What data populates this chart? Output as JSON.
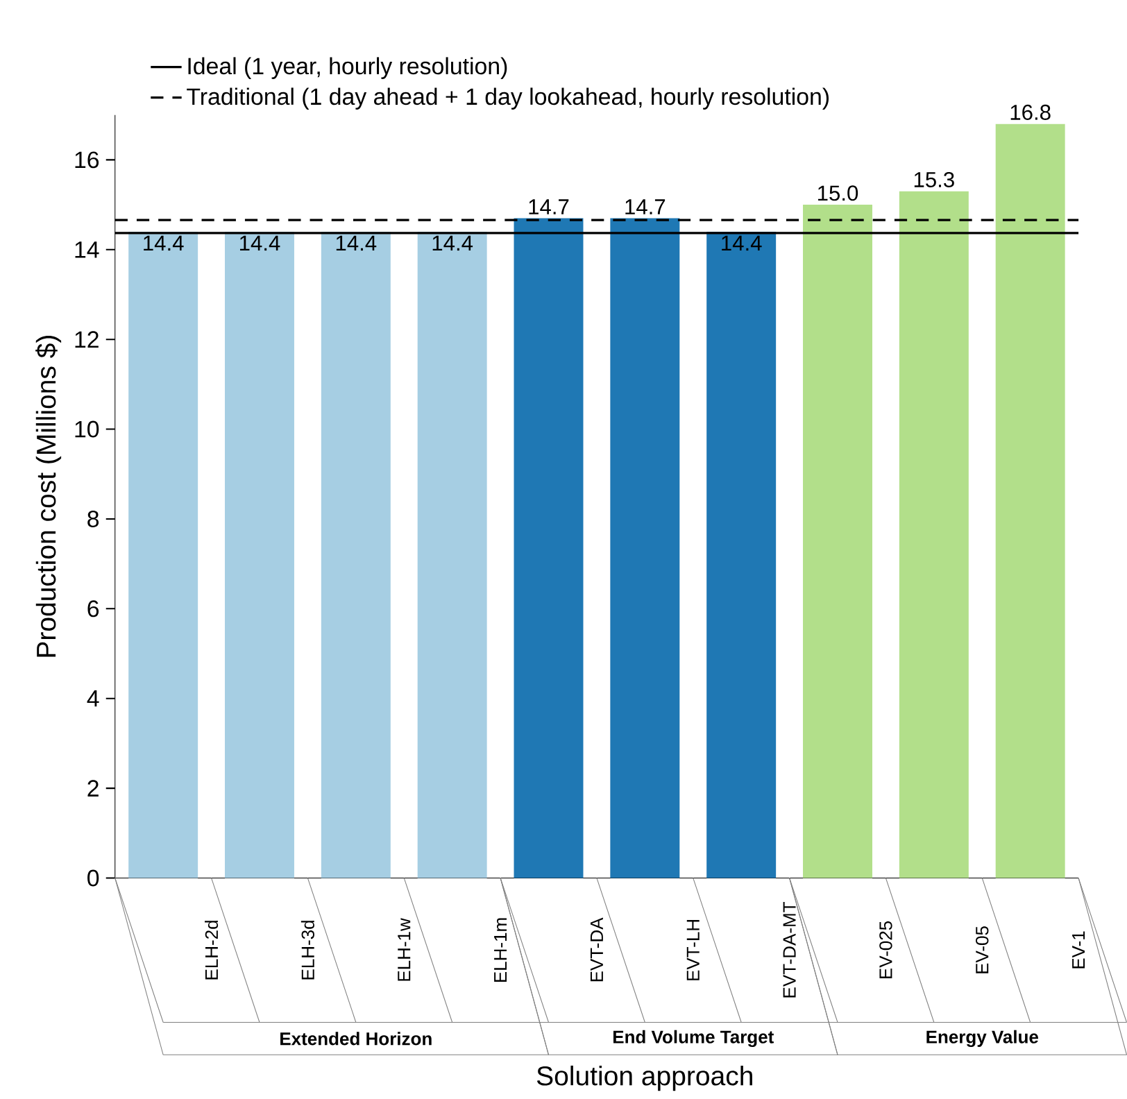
{
  "chart_data": {
    "type": "bar",
    "xlabel": "Solution approach",
    "ylabel": "Production cost (Millions $)",
    "categories": [
      "ELH-2d",
      "ELH-3d",
      "ELH-1w",
      "ELH-1m",
      "EVT-DA",
      "EVT-LH",
      "EVT-DA-MT",
      "EV-025",
      "EV-05",
      "EV-1"
    ],
    "values": [
      14.4,
      14.4,
      14.4,
      14.4,
      14.7,
      14.7,
      14.4,
      15.0,
      15.3,
      16.8
    ],
    "colors": [
      "#a6cee3",
      "#a6cee3",
      "#a6cee3",
      "#a6cee3",
      "#1f78b4",
      "#1f78b4",
      "#1f78b4",
      "#b2df8a",
      "#b2df8a",
      "#b2df8a"
    ],
    "ylim": [
      0,
      17
    ],
    "yticks": [
      0,
      2,
      4,
      6,
      8,
      10,
      12,
      14,
      16
    ],
    "value_labels": [
      "14.4",
      "14.4",
      "14.4",
      "14.4",
      "14.7",
      "14.7",
      "14.4",
      "15.0",
      "15.3",
      "16.8"
    ],
    "legend": "top",
    "ref_lines": [
      {
        "axis": "y",
        "value": 14.37,
        "label": "Ideal (1 year, hourly resolution)",
        "color": "#000000",
        "line_style": "solid"
      },
      {
        "axis": "y",
        "value": 14.66,
        "label": "Traditional (1 day ahead + 1 day lookahead, hourly resolution)",
        "color": "#000000",
        "line_style": "dashed"
      }
    ],
    "annotations": [
      "Extended Horizon",
      "End Volume Target",
      "Energy Value"
    ]
  }
}
